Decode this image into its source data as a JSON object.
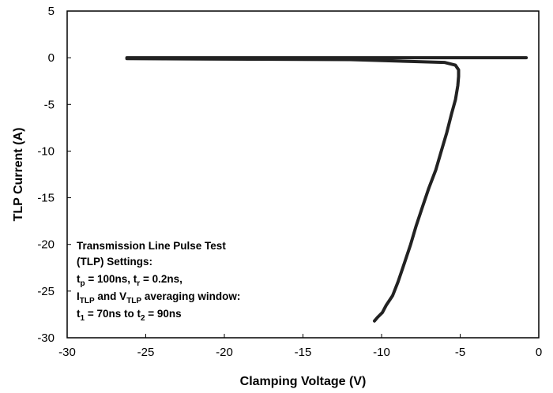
{
  "chart_data": {
    "type": "line",
    "title": "",
    "xlabel": "Clamping Voltage (V)",
    "ylabel": "TLP Current (A)",
    "xlim": [
      -30,
      0
    ],
    "ylim": [
      -30,
      5
    ],
    "xticks": [
      -30,
      -25,
      -20,
      -15,
      -10,
      -5,
      0
    ],
    "yticks": [
      5,
      0,
      -5,
      -10,
      -15,
      -20,
      -25,
      -30
    ],
    "grid": false,
    "legend": "none",
    "line_color": "#222222",
    "annotation": {
      "line1": "Transmission Line Pulse Test",
      "line2": "(TLP) Settings:",
      "line3": {
        "t": "t",
        "p": "p",
        "eq1": " = 100ns, ",
        "t2": "t",
        "r": "r",
        "eq2": " = 0.2ns,"
      },
      "line4": {
        "I": "I",
        "TLP1": "TLP",
        "and": " and ",
        "V": "V",
        "TLP2": "TLP",
        "rest": " averaging window:"
      },
      "line5": {
        "t": "t",
        "s1": "1",
        "eq1": " = 70ns to ",
        "t2": "t",
        "s2": "2",
        "eq2": " = 90ns"
      }
    },
    "series": [
      {
        "x": [
          -0.8,
          -5,
          -13,
          -20,
          -26.2,
          -26.2,
          -20,
          -12,
          -6,
          -5.3,
          -5.1,
          -5.1,
          -5.15,
          -5.3,
          -5.55,
          -5.85,
          -6.2,
          -6.55,
          -7.0,
          -7.4,
          -7.8,
          -8.15,
          -8.55,
          -8.95,
          -9.3,
          -9.7,
          -9.95,
          -10.25,
          -10.45
        ],
        "y": [
          0,
          0,
          0,
          0,
          0,
          -0.1,
          -0.15,
          -0.2,
          -0.5,
          -0.8,
          -1.3,
          -2,
          -3,
          -4.5,
          -6,
          -8,
          -10,
          -12,
          -14,
          -16,
          -18,
          -20,
          -22,
          -24,
          -25.5,
          -26.5,
          -27.3,
          -27.8,
          -28.2
        ]
      }
    ]
  }
}
